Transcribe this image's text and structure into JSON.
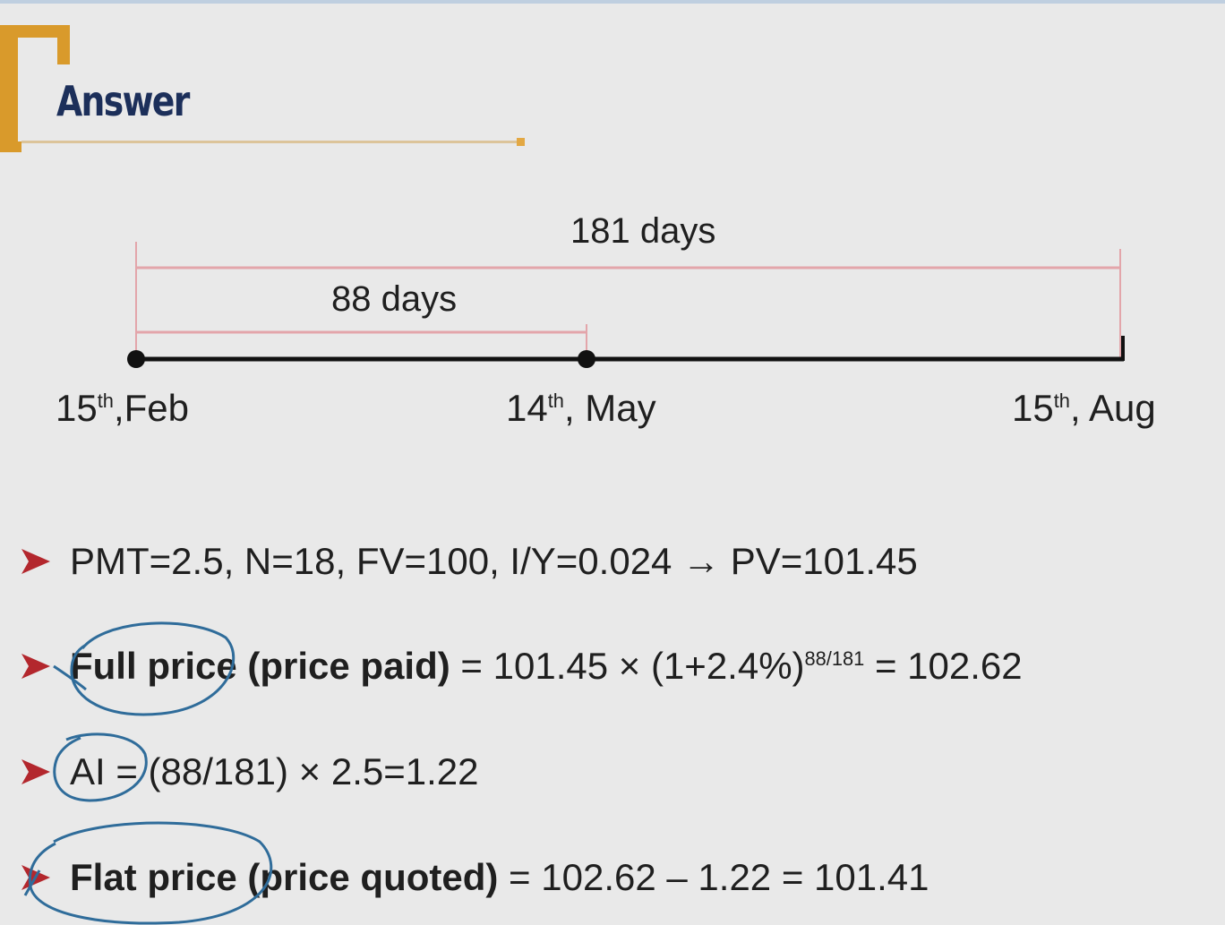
{
  "slide": {
    "title": "Answer"
  },
  "timeline": {
    "total_span": "181 days",
    "partial_span": "88 days",
    "dates": [
      {
        "day": "15",
        "suffix": "th",
        "rest": ",Feb"
      },
      {
        "day": "14",
        "suffix": "th",
        "rest": ", May"
      },
      {
        "day": "15",
        "suffix": "th",
        "rest": ", Aug"
      }
    ]
  },
  "bullets": {
    "b1": {
      "text": "PMT=2.5, N=18, FV=100, I/Y=0.024 → PV=101.45"
    },
    "b2": {
      "bold": "Full price (price paid)",
      "pre": " = 101.45 × (1+2.4%)",
      "exp": "88/181",
      "post": " = 102.62"
    },
    "b3": {
      "text": "AI = (88/181) × 2.5=1.22"
    },
    "b4": {
      "bold": "Flat price (price quoted)",
      "rest": " = 102.62 – 1.22 = 101.41"
    }
  },
  "colors": {
    "accent": "#d99a2b",
    "title": "#1c2f5a",
    "bullet": "#b3272d",
    "bracket_line": "#e3a5aa",
    "annotation": "#2f6c9a"
  }
}
